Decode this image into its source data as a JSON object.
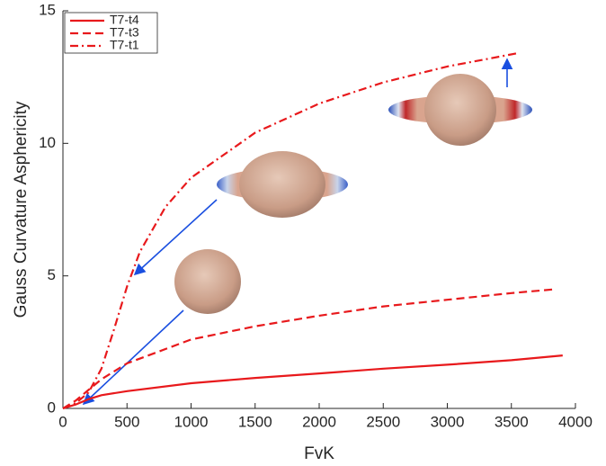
{
  "chart_data": {
    "type": "line",
    "x_label": "FvK",
    "y_label": "Gauss Curvature Asphericity",
    "xlim": [
      0,
      4000
    ],
    "xticks": [
      0,
      500,
      1000,
      1500,
      2000,
      2500,
      3000,
      3500,
      4000
    ],
    "ylim": [
      0,
      15
    ],
    "yticks": [
      0,
      5,
      10,
      15
    ],
    "legend_position": "upper-left",
    "series": [
      {
        "name": "T7-t4",
        "color": "#e8191c",
        "style": "solid",
        "x": [
          0,
          100,
          200,
          300,
          500,
          1000,
          1500,
          2000,
          2500,
          3000,
          3500,
          3900
        ],
        "values": [
          0,
          0.15,
          0.35,
          0.5,
          0.65,
          0.95,
          1.15,
          1.32,
          1.5,
          1.65,
          1.82,
          2.0
        ]
      },
      {
        "name": "T7-t3",
        "color": "#e8191c",
        "style": "dashed",
        "x": [
          0,
          100,
          200,
          300,
          500,
          1000,
          1500,
          2000,
          2500,
          3000,
          3500,
          3850
        ],
        "values": [
          0,
          0.3,
          0.7,
          1.1,
          1.7,
          2.6,
          3.1,
          3.5,
          3.85,
          4.1,
          4.35,
          4.5
        ]
      },
      {
        "name": "T7-t1",
        "color": "#e8191c",
        "style": "dashdot",
        "x": [
          0,
          100,
          200,
          300,
          400,
          500,
          600,
          800,
          1000,
          1500,
          2000,
          2500,
          3000,
          3550
        ],
        "values": [
          0,
          0.2,
          0.6,
          1.5,
          3.0,
          4.6,
          5.9,
          7.6,
          8.7,
          10.4,
          11.5,
          12.3,
          12.9,
          13.4
        ]
      }
    ]
  }
}
